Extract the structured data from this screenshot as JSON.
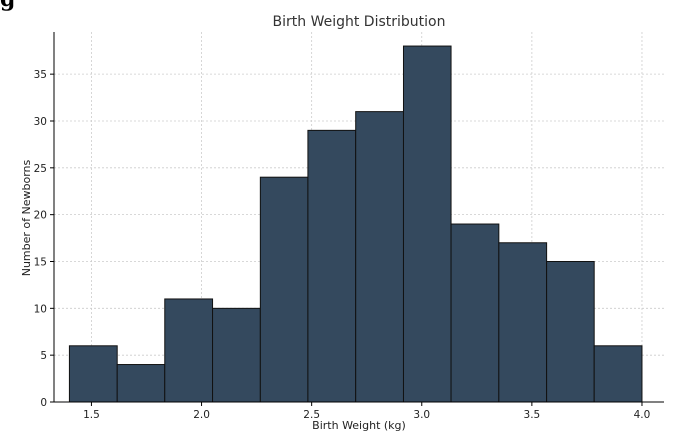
{
  "corner_text": "g",
  "colors": {
    "bar_fill": "#34495e",
    "bar_edge": "#111111",
    "grid": "#cccccc",
    "axis": "#000000"
  },
  "chart_data": {
    "type": "bar",
    "title": "Birth Weight Distribution",
    "xlabel": "Birth Weight (kg)",
    "ylabel": "Number of Newborns",
    "xlim": [
      1.33,
      4.1
    ],
    "ylim": [
      0,
      39.5
    ],
    "xticks": [
      1.5,
      2.0,
      2.5,
      3.0,
      3.5,
      4.0
    ],
    "xtick_labels": [
      "1.5",
      "2.0",
      "2.5",
      "3.0",
      "3.5",
      "4.0"
    ],
    "yticks": [
      0,
      5,
      10,
      15,
      20,
      25,
      30,
      35
    ],
    "ytick_labels": [
      "0",
      "5",
      "10",
      "15",
      "20",
      "25",
      "30",
      "35"
    ],
    "grid": true,
    "bin_edges": [
      1.4,
      1.617,
      1.833,
      2.05,
      2.267,
      2.483,
      2.7,
      2.917,
      3.133,
      3.35,
      3.567,
      3.783,
      4.0
    ],
    "values": [
      6,
      4,
      11,
      10,
      24,
      29,
      31,
      38,
      19,
      17,
      15,
      6
    ]
  }
}
